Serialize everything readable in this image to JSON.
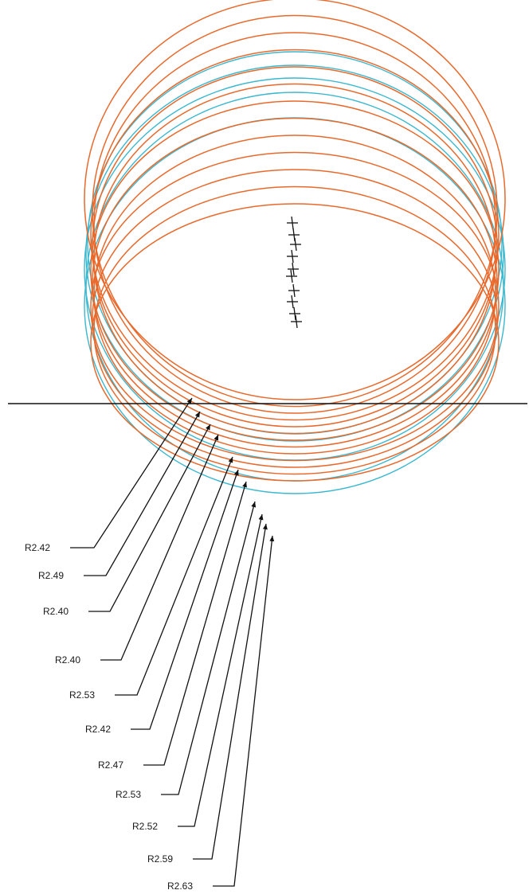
{
  "labels": [
    "R2.42",
    "R2.49",
    "R2.40",
    "R2.40",
    "R2.53",
    "R2.42",
    "R2.47",
    "R2.53",
    "R2.52",
    "R2.59",
    "R2.63"
  ],
  "colors": {
    "orange": "#e8692c",
    "cyan": "#3ab8cf",
    "line": "#111111"
  }
}
